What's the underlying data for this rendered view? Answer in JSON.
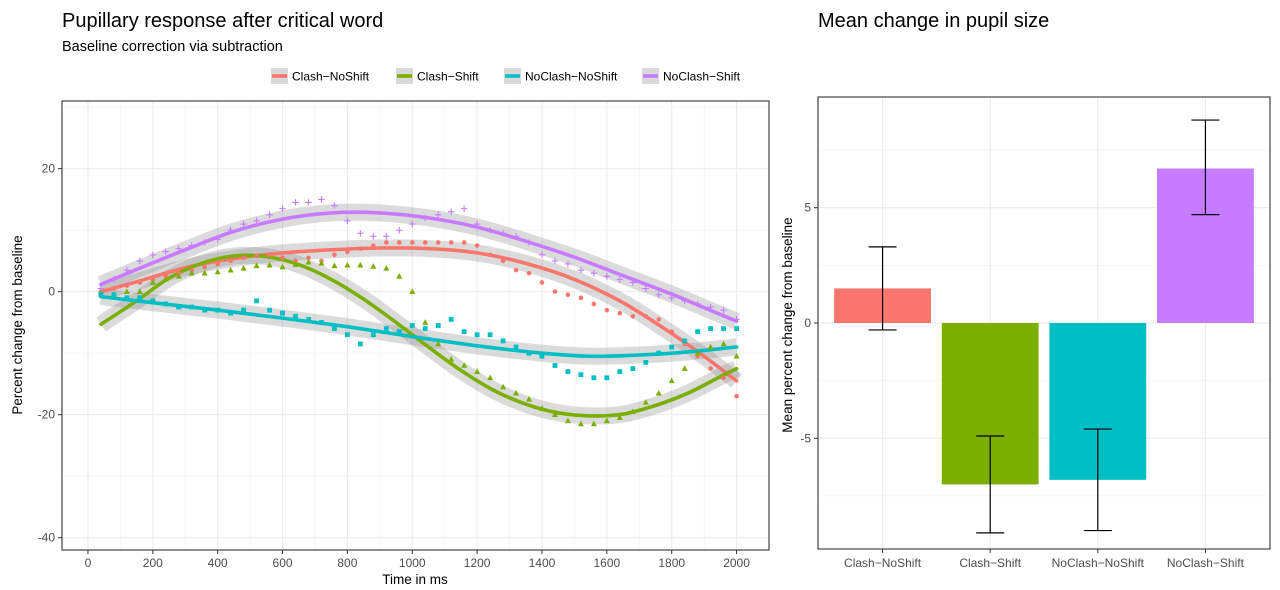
{
  "chart_data": [
    {
      "type": "line",
      "title": "Pupillary response after critical word",
      "subtitle": "Baseline correction via subtraction",
      "xlabel": "Time in ms",
      "ylabel": "Percent change from baseline",
      "xlim": [
        -80,
        2100
      ],
      "ylim": [
        -42,
        31
      ],
      "xticks": [
        0,
        200,
        400,
        600,
        800,
        1000,
        1200,
        1400,
        1600,
        1800,
        2000
      ],
      "yticks": [
        -40,
        -20,
        0,
        20
      ],
      "grid": true,
      "legend_position": "top",
      "series": [
        {
          "name": "Clash−NoShift",
          "color": "#F8766D",
          "marker": "circle",
          "points": [
            [
              40,
              0
            ],
            [
              80,
              0.5
            ],
            [
              120,
              1
            ],
            [
              160,
              1.5
            ],
            [
              200,
              2
            ],
            [
              240,
              2.5
            ],
            [
              280,
              3
            ],
            [
              320,
              3.5
            ],
            [
              360,
              4
            ],
            [
              400,
              4.5
            ],
            [
              440,
              5
            ],
            [
              480,
              5.5
            ],
            [
              520,
              5.8
            ],
            [
              560,
              6
            ],
            [
              600,
              5.5
            ],
            [
              640,
              5
            ],
            [
              680,
              5.5
            ],
            [
              720,
              5
            ],
            [
              760,
              6
            ],
            [
              800,
              6.5
            ],
            [
              840,
              7
            ],
            [
              880,
              7.5
            ],
            [
              920,
              8
            ],
            [
              960,
              8
            ],
            [
              1000,
              8
            ],
            [
              1040,
              8
            ],
            [
              1080,
              8
            ],
            [
              1120,
              8
            ],
            [
              1160,
              8
            ],
            [
              1200,
              7.5
            ],
            [
              1240,
              6
            ],
            [
              1280,
              5
            ],
            [
              1320,
              3.5
            ],
            [
              1360,
              3
            ],
            [
              1400,
              1.5
            ],
            [
              1440,
              0
            ],
            [
              1480,
              -0.5
            ],
            [
              1520,
              -1
            ],
            [
              1560,
              -2
            ],
            [
              1600,
              -3
            ],
            [
              1640,
              -3.5
            ],
            [
              1680,
              -4
            ],
            [
              1720,
              -4
            ],
            [
              1760,
              -4.5
            ],
            [
              1800,
              -6.5
            ],
            [
              1840,
              -8.5
            ],
            [
              1880,
              -10.5
            ],
            [
              1920,
              -12.5
            ],
            [
              1960,
              -14
            ],
            [
              2000,
              -17
            ]
          ],
          "smooth": [
            [
              40,
              0
            ],
            [
              150,
              1.6
            ],
            [
              300,
              3.9
            ],
            [
              450,
              5.4
            ],
            [
              600,
              6.3
            ],
            [
              750,
              6.8
            ],
            [
              900,
              7.1
            ],
            [
              1050,
              7.0
            ],
            [
              1200,
              6.3
            ],
            [
              1350,
              4.6
            ],
            [
              1500,
              2.0
            ],
            [
              1650,
              -1.8
            ],
            [
              1800,
              -6.8
            ],
            [
              1900,
              -10.5
            ],
            [
              2000,
              -14.5
            ]
          ]
        },
        {
          "name": "Clash−Shift",
          "color": "#7CAE00",
          "marker": "triangle",
          "points": [
            [
              40,
              0
            ],
            [
              80,
              -0.5
            ],
            [
              120,
              0
            ],
            [
              160,
              0
            ],
            [
              200,
              1.5
            ],
            [
              240,
              2
            ],
            [
              280,
              2.5
            ],
            [
              320,
              3
            ],
            [
              360,
              3
            ],
            [
              400,
              3.2
            ],
            [
              440,
              3.5
            ],
            [
              480,
              3.8
            ],
            [
              520,
              4.2
            ],
            [
              560,
              4.3
            ],
            [
              600,
              4
            ],
            [
              640,
              4.4
            ],
            [
              680,
              4.8
            ],
            [
              720,
              4.6
            ],
            [
              760,
              4.2
            ],
            [
              800,
              4.3
            ],
            [
              840,
              4.3
            ],
            [
              880,
              4.1
            ],
            [
              920,
              3.8
            ],
            [
              960,
              2.5
            ],
            [
              1000,
              0
            ],
            [
              1040,
              -5
            ],
            [
              1080,
              -8.5
            ],
            [
              1120,
              -11
            ],
            [
              1160,
              -12
            ],
            [
              1200,
              -13
            ],
            [
              1240,
              -14
            ],
            [
              1280,
              -15.5
            ],
            [
              1320,
              -16.5
            ],
            [
              1360,
              -17.5
            ],
            [
              1400,
              -19
            ],
            [
              1440,
              -20
            ],
            [
              1480,
              -21
            ],
            [
              1520,
              -21.5
            ],
            [
              1560,
              -21.5
            ],
            [
              1600,
              -21
            ],
            [
              1640,
              -20.5
            ],
            [
              1680,
              -19.5
            ],
            [
              1720,
              -18
            ],
            [
              1760,
              -16.5
            ],
            [
              1800,
              -14.5
            ],
            [
              1840,
              -12.5
            ],
            [
              1880,
              -10
            ],
            [
              1920,
              -9
            ],
            [
              1960,
              -8.5
            ],
            [
              2000,
              -10.5
            ]
          ],
          "smooth": [
            [
              40,
              -5.3
            ],
            [
              150,
              -1.5
            ],
            [
              250,
              2.2
            ],
            [
              350,
              4.6
            ],
            [
              450,
              5.8
            ],
            [
              550,
              5.7
            ],
            [
              650,
              4.4
            ],
            [
              750,
              2.0
            ],
            [
              850,
              -1.2
            ],
            [
              950,
              -5.0
            ],
            [
              1050,
              -9.0
            ],
            [
              1150,
              -12.8
            ],
            [
              1250,
              -16.0
            ],
            [
              1350,
              -18.3
            ],
            [
              1450,
              -19.7
            ],
            [
              1550,
              -20.2
            ],
            [
              1650,
              -19.9
            ],
            [
              1750,
              -18.5
            ],
            [
              1850,
              -16.5
            ],
            [
              1950,
              -13.8
            ],
            [
              2000,
              -12.5
            ]
          ]
        },
        {
          "name": "NoClash−NoShift",
          "color": "#00BFC4",
          "marker": "square",
          "points": [
            [
              40,
              -0.5
            ],
            [
              80,
              -0.5
            ],
            [
              120,
              -1
            ],
            [
              160,
              -1
            ],
            [
              200,
              -1.5
            ],
            [
              240,
              -2
            ],
            [
              280,
              -2.5
            ],
            [
              320,
              -2.5
            ],
            [
              360,
              -3
            ],
            [
              400,
              -3
            ],
            [
              440,
              -3.5
            ],
            [
              480,
              -3
            ],
            [
              520,
              -1.5
            ],
            [
              560,
              -3
            ],
            [
              600,
              -3.5
            ],
            [
              640,
              -4
            ],
            [
              680,
              -4.5
            ],
            [
              720,
              -5
            ],
            [
              760,
              -6
            ],
            [
              800,
              -7
            ],
            [
              840,
              -8.5
            ],
            [
              880,
              -7
            ],
            [
              920,
              -6
            ],
            [
              960,
              -6.5
            ],
            [
              1000,
              -5.5
            ],
            [
              1040,
              -6
            ],
            [
              1080,
              -5.5
            ],
            [
              1120,
              -4.5
            ],
            [
              1160,
              -6.5
            ],
            [
              1200,
              -7
            ],
            [
              1240,
              -7
            ],
            [
              1280,
              -8
            ],
            [
              1320,
              -9
            ],
            [
              1360,
              -10
            ],
            [
              1400,
              -10.5
            ],
            [
              1440,
              -12
            ],
            [
              1480,
              -13
            ],
            [
              1520,
              -13.5
            ],
            [
              1560,
              -14
            ],
            [
              1600,
              -14
            ],
            [
              1640,
              -13
            ],
            [
              1680,
              -12.5
            ],
            [
              1720,
              -11.5
            ],
            [
              1760,
              -10
            ],
            [
              1800,
              -9
            ],
            [
              1840,
              -8
            ],
            [
              1880,
              -6.5
            ],
            [
              1920,
              -6
            ],
            [
              1960,
              -6
            ],
            [
              2000,
              -6
            ]
          ],
          "smooth": [
            [
              40,
              -0.8
            ],
            [
              200,
              -1.8
            ],
            [
              400,
              -3.0
            ],
            [
              600,
              -4.3
            ],
            [
              800,
              -5.7
            ],
            [
              1000,
              -7.3
            ],
            [
              1200,
              -8.8
            ],
            [
              1400,
              -10.0
            ],
            [
              1550,
              -10.5
            ],
            [
              1700,
              -10.3
            ],
            [
              1850,
              -9.8
            ],
            [
              2000,
              -9.0
            ]
          ]
        },
        {
          "name": "NoClash−Shift",
          "color": "#C77CFF",
          "marker": "plus",
          "points": [
            [
              40,
              0.5
            ],
            [
              80,
              2
            ],
            [
              120,
              3.5
            ],
            [
              160,
              5
            ],
            [
              200,
              6
            ],
            [
              240,
              6.5
            ],
            [
              280,
              7
            ],
            [
              320,
              7.5
            ],
            [
              360,
              8
            ],
            [
              400,
              8.5
            ],
            [
              440,
              10
            ],
            [
              480,
              11
            ],
            [
              520,
              11.5
            ],
            [
              560,
              12.5
            ],
            [
              600,
              13.5
            ],
            [
              640,
              14.5
            ],
            [
              680,
              14.5
            ],
            [
              720,
              15
            ],
            [
              760,
              14
            ],
            [
              800,
              11.5
            ],
            [
              840,
              9.5
            ],
            [
              880,
              9
            ],
            [
              920,
              9
            ],
            [
              960,
              10
            ],
            [
              1000,
              11
            ],
            [
              1040,
              12
            ],
            [
              1080,
              12.5
            ],
            [
              1120,
              13
            ],
            [
              1160,
              13.5
            ],
            [
              1200,
              11
            ],
            [
              1240,
              10
            ],
            [
              1280,
              9.5
            ],
            [
              1320,
              9
            ],
            [
              1360,
              8
            ],
            [
              1400,
              6
            ],
            [
              1440,
              5
            ],
            [
              1480,
              4.5
            ],
            [
              1520,
              3.5
            ],
            [
              1560,
              3
            ],
            [
              1600,
              2.5
            ],
            [
              1640,
              2
            ],
            [
              1680,
              1.5
            ],
            [
              1720,
              0.5
            ],
            [
              1760,
              -0.5
            ],
            [
              1800,
              -1
            ],
            [
              1840,
              -1.5
            ],
            [
              1880,
              -2
            ],
            [
              1920,
              -2.5
            ],
            [
              1960,
              -3
            ],
            [
              2000,
              -4.5
            ]
          ],
          "smooth": [
            [
              40,
              1.2
            ],
            [
              150,
              3.6
            ],
            [
              300,
              6.8
            ],
            [
              450,
              9.8
            ],
            [
              600,
              11.8
            ],
            [
              750,
              12.8
            ],
            [
              900,
              12.8
            ],
            [
              1050,
              12.0
            ],
            [
              1200,
              10.5
            ],
            [
              1350,
              8.2
            ],
            [
              1500,
              5.6
            ],
            [
              1650,
              2.6
            ],
            [
              1800,
              -0.4
            ],
            [
              1900,
              -2.6
            ],
            [
              2000,
              -4.8
            ]
          ]
        }
      ]
    },
    {
      "type": "bar",
      "title": "Mean change in pupil size",
      "xlabel": "",
      "ylabel": "Mean percent change from baseline",
      "ylim": [
        -9.8,
        9.8
      ],
      "yticks": [
        -5,
        0,
        5
      ],
      "grid": true,
      "categories": [
        "Clash−NoShift",
        "Clash−Shift",
        "NoClash−NoShift",
        "NoClash−Shift"
      ],
      "values": [
        1.5,
        -7.0,
        -6.8,
        6.7
      ],
      "error_low": [
        -0.3,
        -9.1,
        -9.0,
        4.7
      ],
      "error_high": [
        3.3,
        -4.9,
        -4.6,
        8.8
      ],
      "colors": [
        "#F8766D",
        "#7CAE00",
        "#00BFC4",
        "#C77CFF"
      ]
    }
  ]
}
